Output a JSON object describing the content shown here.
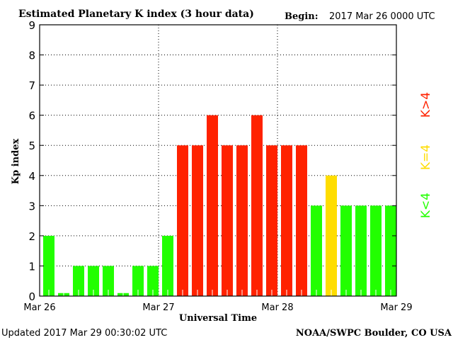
{
  "chart_data": {
    "type": "bar",
    "title": "Estimated Planetary K index (3 hour data)",
    "begin_label": "Begin:",
    "begin_value": "2017 Mar 26 0000 UTC",
    "xlabel": "Universal Time",
    "ylabel": "Kp index",
    "ylim": [
      0,
      9
    ],
    "yticks": [
      "0",
      "1",
      "2",
      "3",
      "4",
      "5",
      "6",
      "7",
      "8",
      "9"
    ],
    "xticks": [
      "Mar 26",
      "Mar 27",
      "Mar 28",
      "Mar 29"
    ],
    "values": [
      2,
      0,
      1,
      1,
      1,
      0,
      1,
      1,
      2,
      5,
      5,
      6,
      5,
      5,
      6,
      5,
      5,
      5,
      3,
      4,
      3,
      3,
      3,
      3
    ],
    "grid": true,
    "legend": [
      {
        "label": "K<4",
        "color": "#22ff00"
      },
      {
        "label": "K=4",
        "color": "#ffdd00"
      },
      {
        "label": "K>4",
        "color": "#ff2200"
      }
    ],
    "legend_placement": "right",
    "colors": {
      "low": "#22ff00",
      "mid": "#ffdd00",
      "high": "#ff2200"
    }
  },
  "footer": {
    "updated": "Updated 2017 Mar 29 00:30:02 UTC",
    "source": "NOAA/SWPC Boulder, CO USA"
  }
}
